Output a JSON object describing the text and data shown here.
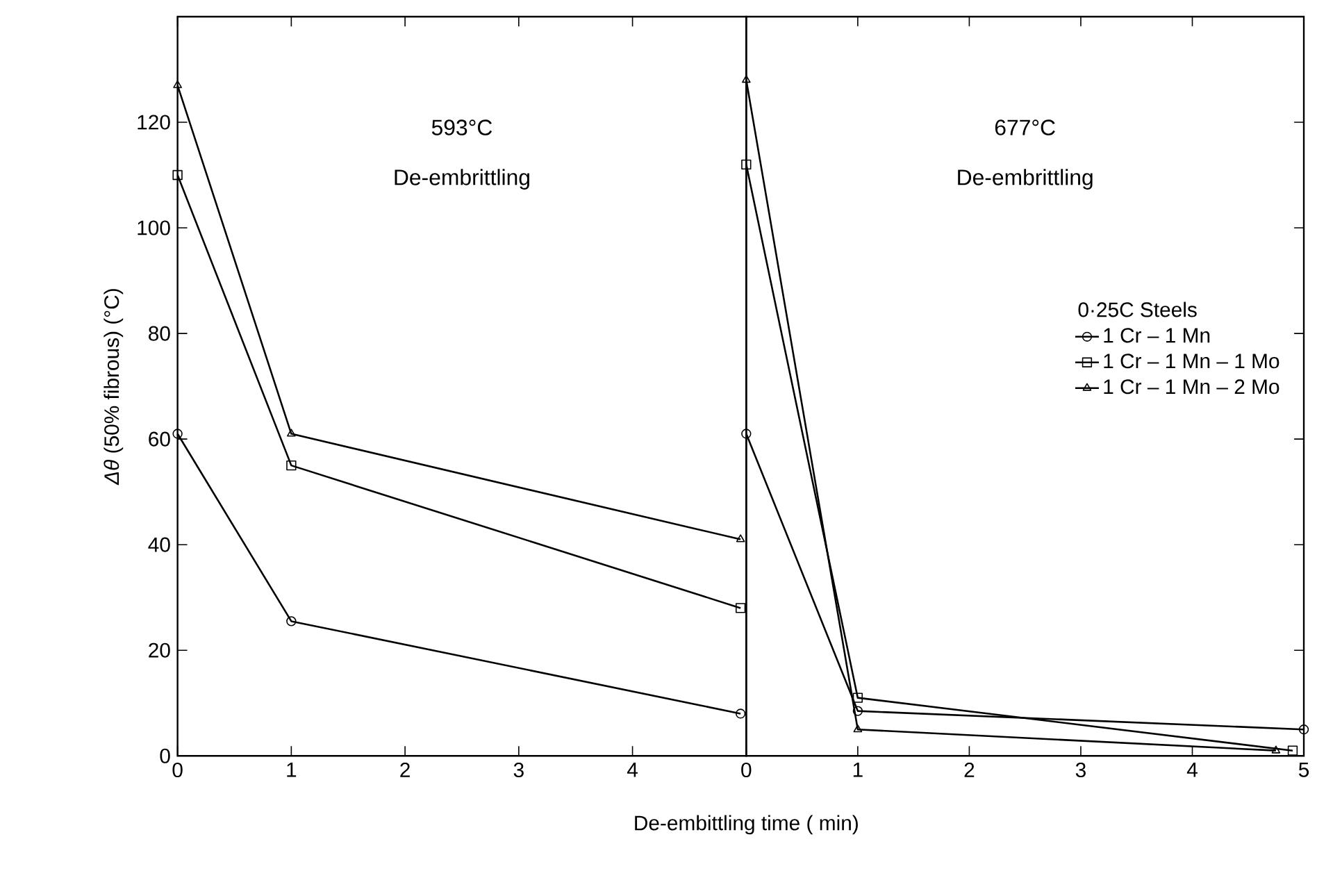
{
  "chart_data": [
    {
      "type": "line",
      "xlabel": "De-embittling time  ( min)",
      "ylabel": "*Δθ* (50% fibrous) (°C)",
      "annotations": [
        "593°C",
        "De-embrittling"
      ],
      "xlim": [
        0,
        5
      ],
      "xticks": [
        0,
        1,
        2,
        3,
        4
      ],
      "ylim": [
        0,
        140
      ],
      "yticks": [
        0,
        20,
        40,
        60,
        80,
        100,
        120
      ],
      "grid": false,
      "legend": false,
      "series": [
        {
          "color": "#000000",
          "marker": "circle",
          "x": [
            0,
            1,
            4.95
          ],
          "values": [
            61,
            25.5,
            8
          ]
        },
        {
          "color": "#000000",
          "marker": "square",
          "x": [
            0,
            1,
            4.95
          ],
          "values": [
            110,
            55,
            28
          ]
        },
        {
          "color": "#000000",
          "marker": "triangle",
          "x": [
            0,
            1,
            4.95
          ],
          "values": [
            127,
            61,
            41
          ]
        }
      ]
    },
    {
      "type": "line",
      "annotations": [
        "677°C",
        "De-embrittling"
      ],
      "legend_title": "0·25C  Steels",
      "xlim": [
        0,
        5
      ],
      "xticks": [
        0,
        1,
        2,
        3,
        4,
        5
      ],
      "ylim": [
        0,
        140
      ],
      "yticks": [
        0,
        20,
        40,
        60,
        80,
        100,
        120
      ],
      "tick_labels": "x",
      "grid": false,
      "legend": "right",
      "series": [
        {
          "name": "1 Cr – 1 Mn",
          "color": "#000000",
          "marker": "circle",
          "x": [
            0,
            1,
            5
          ],
          "values": [
            61,
            8.5,
            5
          ]
        },
        {
          "name": "1 Cr – 1 Mn – 1 Mo",
          "color": "#000000",
          "marker": "square",
          "x": [
            0,
            1,
            4.9
          ],
          "values": [
            112,
            11,
            1
          ]
        },
        {
          "name": "1 Cr – 1 Mn – 2 Mo",
          "color": "#000000",
          "marker": "triangle",
          "x": [
            0,
            1,
            4.75
          ],
          "values": [
            128,
            5,
            1
          ]
        }
      ]
    }
  ]
}
